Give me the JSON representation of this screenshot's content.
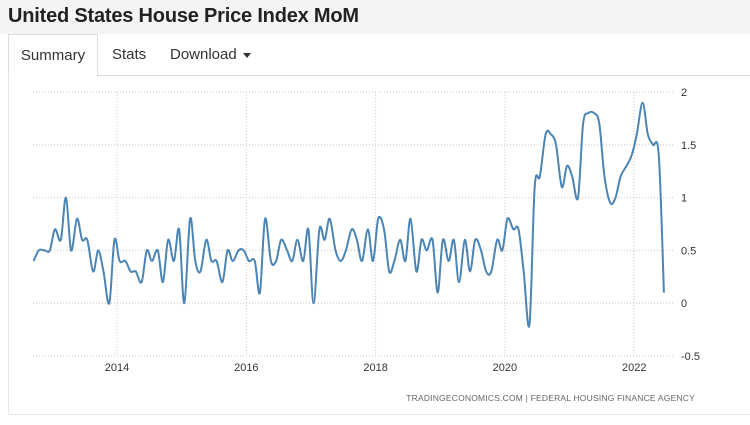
{
  "header": {
    "title": "United States House Price Index MoM"
  },
  "tabs": [
    {
      "label": "Summary",
      "active": true
    },
    {
      "label": "Stats",
      "active": false
    },
    {
      "label": "Download",
      "active": false,
      "has_dropdown": true
    }
  ],
  "source_text": "TRADINGECONOMICS.COM  |  FEDERAL HOUSING FINANCE AGENCY",
  "colors": {
    "line": "#4a85b5",
    "grid": "#c8c8c8"
  },
  "chart_data": {
    "type": "line",
    "title": "",
    "xlabel": "",
    "ylabel": "",
    "ylim": [
      -0.5,
      2
    ],
    "xlim": [
      2012.7,
      2022.6
    ],
    "y_ticks": [
      2,
      1.5,
      1,
      0.5,
      0,
      -0.5
    ],
    "y_tick_labels": [
      "2",
      "1.5",
      "1",
      "0.5",
      "0",
      "-0.5"
    ],
    "x_ticks": [
      2014,
      2016,
      2018,
      2020,
      2022
    ],
    "x_tick_labels": [
      "2014",
      "2016",
      "2018",
      "2020",
      "2022"
    ],
    "grid": true,
    "series": [
      {
        "name": "",
        "x": [
          2012.71,
          2012.79,
          2012.88,
          2012.96,
          2013.04,
          2013.13,
          2013.21,
          2013.29,
          2013.38,
          2013.46,
          2013.54,
          2013.63,
          2013.71,
          2013.79,
          2013.88,
          2013.96,
          2014.04,
          2014.13,
          2014.21,
          2014.29,
          2014.38,
          2014.46,
          2014.54,
          2014.63,
          2014.71,
          2014.79,
          2014.88,
          2014.96,
          2015.04,
          2015.13,
          2015.21,
          2015.29,
          2015.38,
          2015.46,
          2015.54,
          2015.63,
          2015.71,
          2015.79,
          2015.88,
          2015.96,
          2016.04,
          2016.13,
          2016.21,
          2016.29,
          2016.38,
          2016.46,
          2016.54,
          2016.63,
          2016.71,
          2016.79,
          2016.88,
          2016.96,
          2017.04,
          2017.13,
          2017.21,
          2017.29,
          2017.38,
          2017.46,
          2017.54,
          2017.63,
          2017.71,
          2017.79,
          2017.88,
          2017.96,
          2018.04,
          2018.13,
          2018.21,
          2018.29,
          2018.38,
          2018.46,
          2018.54,
          2018.63,
          2018.71,
          2018.79,
          2018.88,
          2018.96,
          2019.04,
          2019.13,
          2019.21,
          2019.29,
          2019.38,
          2019.46,
          2019.54,
          2019.63,
          2019.71,
          2019.79,
          2019.88,
          2019.96,
          2020.04,
          2020.13,
          2020.21,
          2020.29,
          2020.38,
          2020.46,
          2020.54,
          2020.63,
          2020.71,
          2020.79,
          2020.88,
          2020.96,
          2021.04,
          2021.13,
          2021.21,
          2021.29,
          2021.38,
          2021.46,
          2021.54,
          2021.63,
          2021.71,
          2021.79,
          2021.88,
          2021.96,
          2022.04,
          2022.13,
          2022.21,
          2022.29,
          2022.38,
          2022.46
        ],
        "values": [
          0.4,
          0.5,
          0.5,
          0.5,
          0.7,
          0.6,
          1.0,
          0.5,
          0.8,
          0.6,
          0.6,
          0.3,
          0.5,
          0.3,
          0.0,
          0.6,
          0.4,
          0.4,
          0.3,
          0.3,
          0.2,
          0.5,
          0.4,
          0.5,
          0.2,
          0.6,
          0.4,
          0.7,
          0.0,
          0.8,
          0.4,
          0.3,
          0.6,
          0.4,
          0.4,
          0.2,
          0.5,
          0.4,
          0.5,
          0.5,
          0.4,
          0.4,
          0.1,
          0.8,
          0.4,
          0.4,
          0.6,
          0.5,
          0.4,
          0.6,
          0.4,
          0.7,
          0.0,
          0.7,
          0.6,
          0.8,
          0.5,
          0.4,
          0.5,
          0.7,
          0.6,
          0.4,
          0.7,
          0.4,
          0.8,
          0.7,
          0.3,
          0.4,
          0.6,
          0.4,
          0.8,
          0.3,
          0.6,
          0.5,
          0.6,
          0.1,
          0.6,
          0.4,
          0.6,
          0.2,
          0.6,
          0.3,
          0.6,
          0.5,
          0.3,
          0.3,
          0.6,
          0.5,
          0.8,
          0.7,
          0.7,
          0.3,
          -0.2,
          1.1,
          1.2,
          1.6,
          1.6,
          1.5,
          1.1,
          1.3,
          1.2,
          1.0,
          1.7,
          1.8,
          1.8,
          1.7,
          1.2,
          0.95,
          1.0,
          1.2,
          1.3,
          1.4,
          1.6,
          1.9,
          1.6,
          1.5,
          1.4,
          0.1
        ]
      }
    ]
  }
}
